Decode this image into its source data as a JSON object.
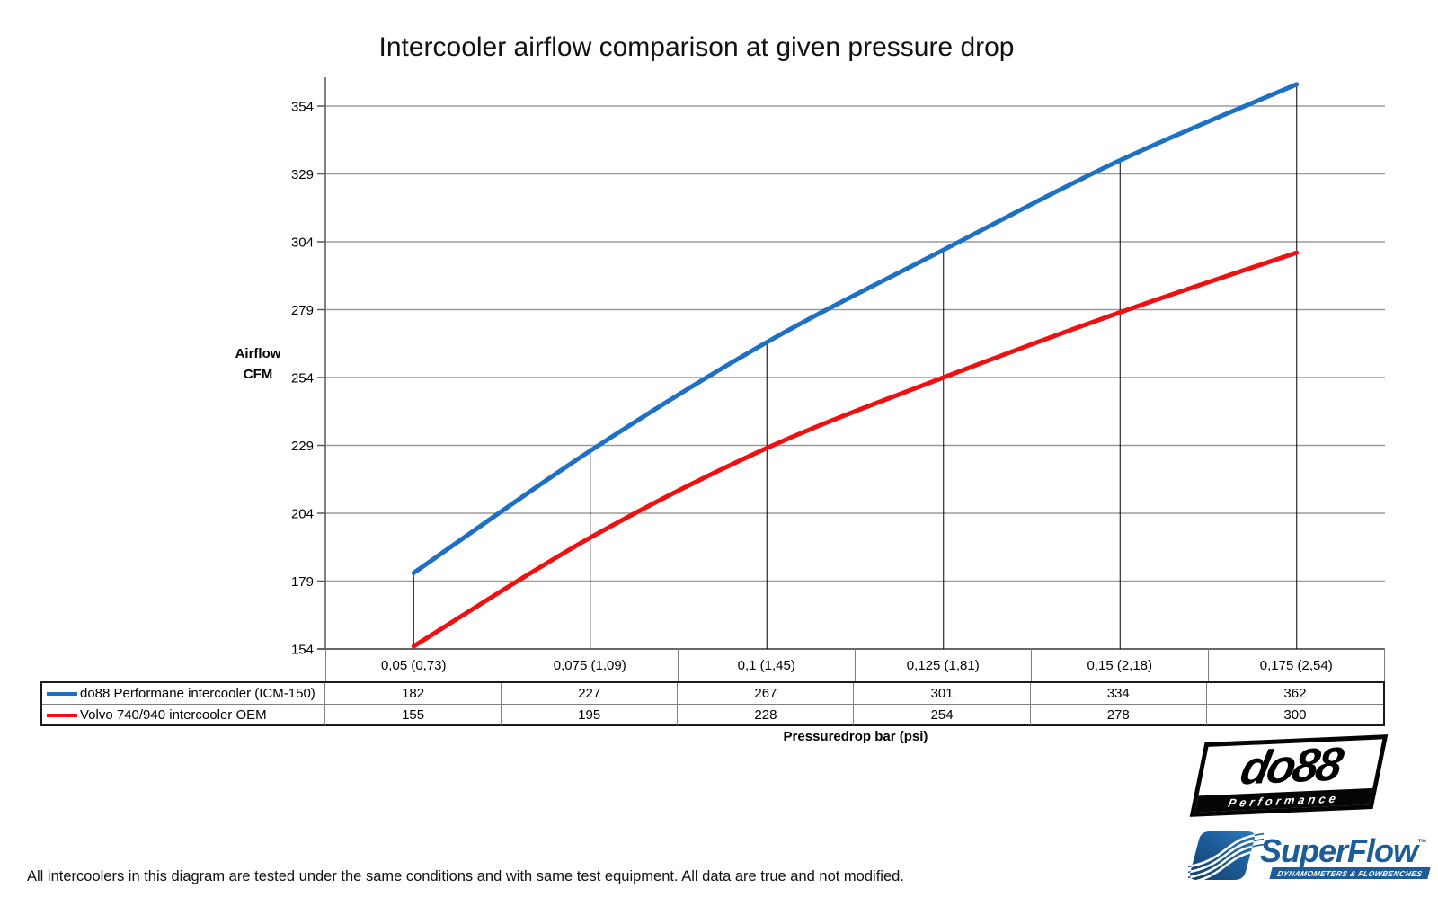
{
  "title": "Intercooler airflow comparison at given pressure drop",
  "y_axis_title": {
    "line1": "Airflow",
    "line2": "CFM"
  },
  "x_axis_title": "Pressuredrop bar (psi)",
  "chart_data": {
    "type": "line",
    "title": "Intercooler airflow comparison at given pressure drop",
    "xlabel": "Pressuredrop bar (psi)",
    "ylabel": "Airflow CFM",
    "categories": [
      "0,05 (0,73)",
      "0,075 (1,09)",
      "0,1 (1,45)",
      "0,125 (1,81)",
      "0,15 (2,18)",
      "0,175 (2,54)"
    ],
    "y_ticks": [
      354,
      329,
      304,
      279,
      254,
      229,
      204,
      179,
      154
    ],
    "ylim": [
      154,
      364
    ],
    "grid": "horizontal-only",
    "line_style": "smoothed",
    "legend_position": "table-left",
    "drop_lines": "vertical black line at each category up to first series",
    "series": [
      {
        "name": "do88 Performane intercooler (ICM-150)",
        "color": "#1e70c2",
        "values": [
          182,
          227,
          267,
          301,
          334,
          362
        ]
      },
      {
        "name": "Volvo 740/940 intercooler OEM",
        "color": "#ee1111",
        "values": [
          155,
          195,
          228,
          254,
          278,
          300
        ]
      }
    ]
  },
  "footer_note": "All intercoolers in this diagram are tested under the same conditions and with same test equipment. All data are true and not modified.",
  "logos": {
    "do88": {
      "text": "do88",
      "subtext": "Performance"
    },
    "superflow": {
      "text": "SuperFlow",
      "trademark": "™",
      "subtext": "DYNAMOMETERS & FLOWBENCHES",
      "color": "#1c5c99"
    }
  },
  "colors": {
    "gridline": "#9b9b9b",
    "axis": "#595959",
    "drop_line": "#000000",
    "table_border_outer": "#1a1a1a",
    "table_border_inner": "#808080",
    "background": "#ffffff"
  }
}
